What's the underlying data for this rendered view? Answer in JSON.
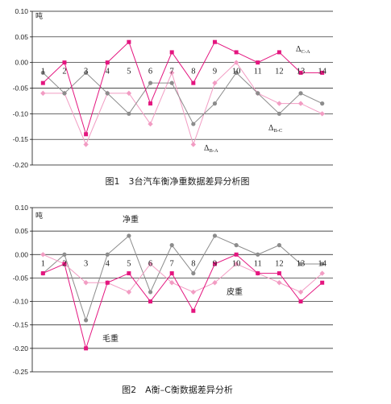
{
  "chart_data": [
    {
      "type": "line",
      "caption": "图1　3台汽车衡净重数据差异分析图",
      "unit_label": "吨",
      "categories": [
        "1",
        "2",
        "3",
        "4",
        "5",
        "6",
        "7",
        "8",
        "9",
        "10",
        "11",
        "12",
        "13",
        "14"
      ],
      "ylim": [
        -0.2,
        0.1
      ],
      "yticks": [
        "0.10",
        "0.05",
        "0.00",
        "-0.05",
        "-0.10",
        "-0.15",
        "-0.20"
      ],
      "grid": true,
      "series": [
        {
          "label": {
            "symbol": "Δ",
            "sub": "B-A"
          },
          "color": "#f29cc3",
          "marker": "diamond",
          "values": [
            -0.06,
            -0.06,
            -0.16,
            -0.06,
            -0.06,
            -0.12,
            -0.02,
            -0.16,
            -0.04,
            0.0,
            -0.06,
            -0.08,
            -0.08,
            -0.1
          ]
        },
        {
          "label": {
            "symbol": "Δ",
            "sub": "B-C"
          },
          "color": "#8c8c8c",
          "marker": "circle",
          "values": [
            -0.02,
            -0.06,
            -0.02,
            -0.06,
            -0.1,
            -0.04,
            -0.04,
            -0.12,
            -0.08,
            -0.02,
            -0.06,
            -0.1,
            -0.06,
            -0.08
          ]
        },
        {
          "label": {
            "symbol": "Δ",
            "sub": "C-A"
          },
          "color": "#e4157f",
          "marker": "square",
          "values": [
            -0.04,
            0.0,
            -0.14,
            0.0,
            0.04,
            -0.08,
            0.02,
            -0.04,
            0.04,
            0.02,
            0.0,
            0.02,
            -0.02,
            -0.02
          ]
        }
      ]
    },
    {
      "type": "line",
      "caption": "图2　A衡–C衡数据差异分析",
      "unit_label": "吨",
      "categories": [
        "1",
        "2",
        "3",
        "4",
        "5",
        "6",
        "7",
        "8",
        "9",
        "10",
        "11",
        "12",
        "13",
        "14"
      ],
      "ylim": [
        -0.25,
        0.1
      ],
      "yticks": [
        "0.10",
        "0.05",
        "0.00",
        "-0.05",
        "-0.10",
        "-0.15",
        "-0.20",
        "-0.25"
      ],
      "grid": true,
      "series": [
        {
          "name": "净重",
          "color": "#8c8c8c",
          "marker": "circle",
          "values": [
            -0.04,
            0.0,
            -0.14,
            0.0,
            0.04,
            -0.08,
            0.02,
            -0.04,
            0.04,
            0.02,
            0.0,
            0.02,
            -0.02,
            -0.02
          ]
        },
        {
          "name": "皮重",
          "color": "#f29cc3",
          "marker": "diamond",
          "values": [
            0.0,
            -0.02,
            -0.06,
            -0.06,
            -0.08,
            -0.02,
            -0.06,
            -0.08,
            -0.06,
            -0.02,
            -0.04,
            -0.06,
            -0.08,
            -0.04
          ]
        },
        {
          "name": "毛重",
          "color": "#e4157f",
          "marker": "square",
          "values": [
            -0.04,
            -0.02,
            -0.2,
            -0.06,
            -0.04,
            -0.1,
            -0.04,
            -0.12,
            -0.02,
            0.0,
            -0.04,
            -0.04,
            -0.1,
            -0.06
          ]
        }
      ]
    }
  ]
}
